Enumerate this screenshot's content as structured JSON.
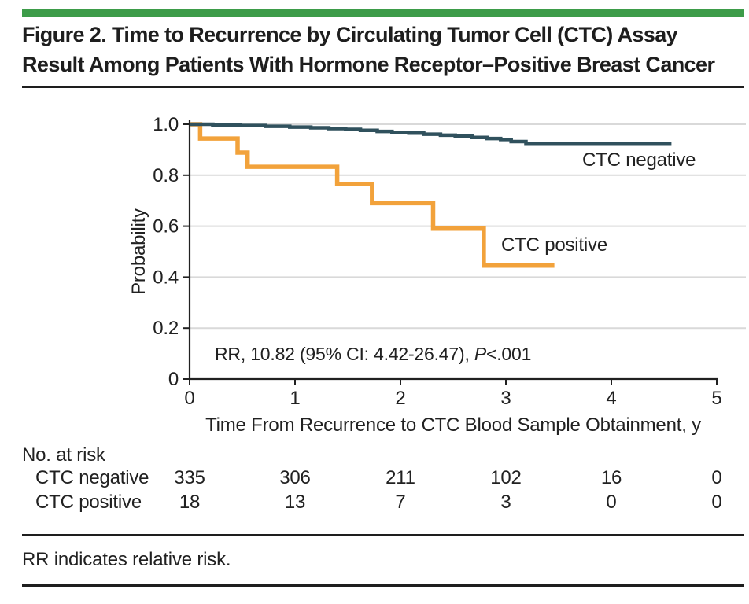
{
  "header": {
    "title_line1": "Figure 2. Time to Recurrence by Circulating Tumor Cell (CTC) Assay",
    "title_line2": "Result Among Patients With Hormone Receptor–Positive Breast Cancer",
    "accent_color": "#3d9c49"
  },
  "chart_data": {
    "type": "line",
    "subtype": "kaplan_meier_step",
    "title": "",
    "xlabel": "Time From Recurrence to CTC Blood Sample Obtainment, y",
    "ylabel": "Probability",
    "xlim": [
      0,
      5
    ],
    "ylim": [
      0,
      1.0
    ],
    "xticks": [
      0,
      1,
      2,
      3,
      4,
      5
    ],
    "xtick_labels": [
      "0",
      "1",
      "2",
      "3",
      "4",
      "5"
    ],
    "yticks": [
      0,
      0.2,
      0.4,
      0.6,
      0.8,
      1.0
    ],
    "ytick_labels": [
      "0",
      "0.2",
      "0.4",
      "0.6",
      "0.8",
      "1.0"
    ],
    "grid": "horizontal",
    "gridline_color": "#d9d9d9",
    "axis_color": "#212121",
    "legend_position": "inline-labels",
    "annotation": {
      "prefix": "RR, 10.82 (95% CI: 4.42-26.47), ",
      "italic": "P",
      "suffix": "<.001"
    },
    "series": [
      {
        "name": "CTC negative",
        "color": "#30515d",
        "stroke_width": 4.5,
        "steps": [
          [
            0,
            1.0
          ],
          [
            0.22,
            0.997
          ],
          [
            0.48,
            0.995
          ],
          [
            0.72,
            0.992
          ],
          [
            0.95,
            0.989
          ],
          [
            1.15,
            0.986
          ],
          [
            1.32,
            0.983
          ],
          [
            1.48,
            0.98
          ],
          [
            1.62,
            0.976
          ],
          [
            1.78,
            0.972
          ],
          [
            1.92,
            0.968
          ],
          [
            2.08,
            0.965
          ],
          [
            2.22,
            0.961
          ],
          [
            2.38,
            0.957
          ],
          [
            2.52,
            0.953
          ],
          [
            2.68,
            0.948
          ],
          [
            2.82,
            0.944
          ],
          [
            2.95,
            0.94
          ],
          [
            3.05,
            0.932
          ],
          [
            3.19,
            0.922
          ]
        ],
        "end_x": 4.57
      },
      {
        "name": "CTC positive",
        "color": "#f2a23b",
        "stroke_width": 5.5,
        "steps": [
          [
            0,
            1.0
          ],
          [
            0.1,
            0.944
          ],
          [
            0.455,
            0.889
          ],
          [
            0.55,
            0.833
          ],
          [
            1.4,
            0.766
          ],
          [
            1.73,
            0.69
          ],
          [
            2.31,
            0.59
          ],
          [
            2.79,
            0.445
          ]
        ],
        "end_x": 3.46
      }
    ]
  },
  "risk_table": {
    "title": "No. at risk",
    "rows": [
      {
        "label": "CTC negative",
        "values": [
          335,
          306,
          211,
          102,
          16,
          0
        ]
      },
      {
        "label": "CTC positive",
        "values": [
          18,
          13,
          7,
          3,
          0,
          0
        ]
      }
    ]
  },
  "footnote": "RR indicates relative risk."
}
